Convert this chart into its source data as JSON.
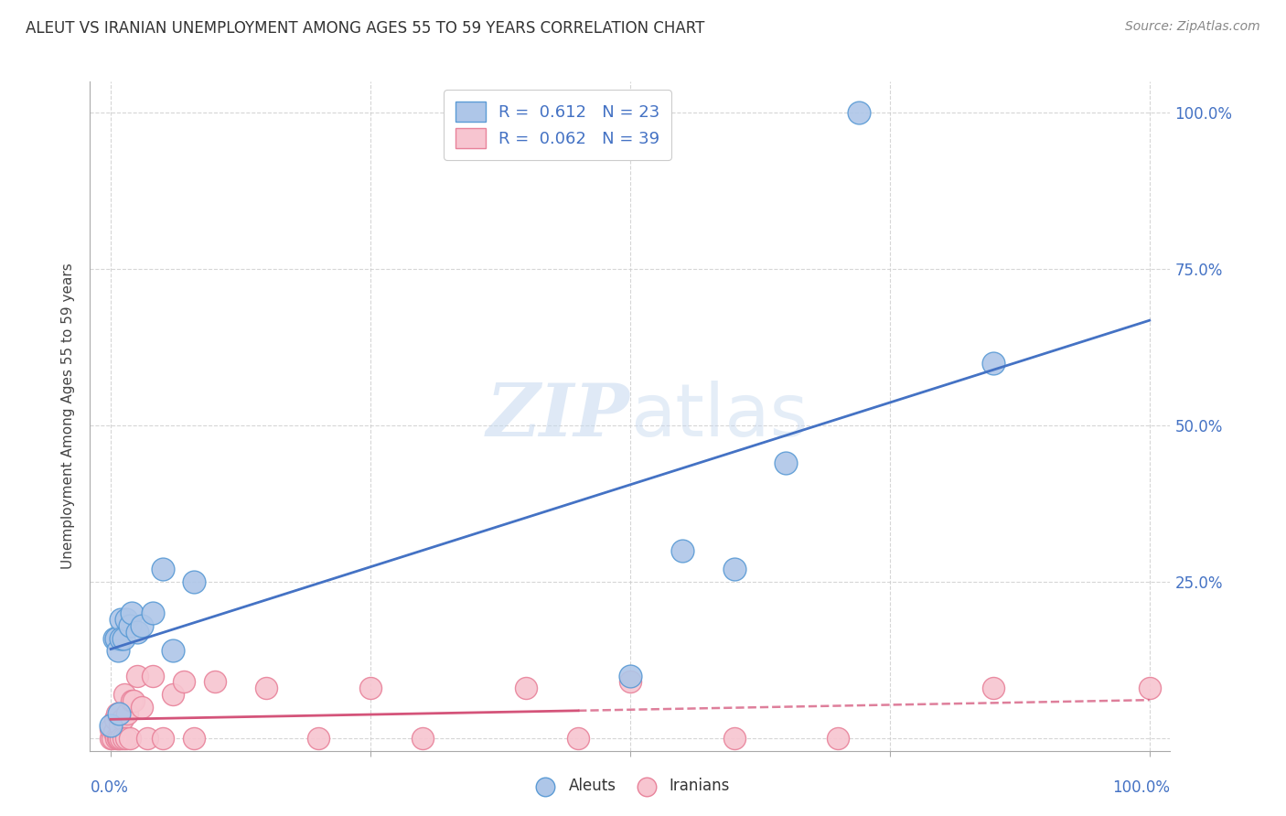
{
  "title": "ALEUT VS IRANIAN UNEMPLOYMENT AMONG AGES 55 TO 59 YEARS CORRELATION CHART",
  "source": "Source: ZipAtlas.com",
  "ylabel": "Unemployment Among Ages 55 to 59 years",
  "aleut_R": 0.612,
  "aleut_N": 23,
  "iranian_R": 0.062,
  "iranian_N": 39,
  "aleut_color": "#aec6e8",
  "aleut_edge_color": "#5b9bd5",
  "aleut_line_color": "#4472c4",
  "iranian_color": "#f7c5d0",
  "iranian_edge_color": "#e8829a",
  "iranian_line_color": "#d4547a",
  "aleut_points_x": [
    0.0,
    0.003,
    0.005,
    0.007,
    0.008,
    0.01,
    0.01,
    0.012,
    0.015,
    0.018,
    0.02,
    0.025,
    0.03,
    0.04,
    0.05,
    0.06,
    0.08,
    0.5,
    0.55,
    0.6,
    0.65,
    0.72,
    0.85
  ],
  "aleut_points_y": [
    0.02,
    0.16,
    0.16,
    0.14,
    0.04,
    0.19,
    0.16,
    0.16,
    0.19,
    0.18,
    0.2,
    0.17,
    0.18,
    0.2,
    0.27,
    0.14,
    0.25,
    0.1,
    0.3,
    0.27,
    0.44,
    1.0,
    0.6
  ],
  "iranian_points_x": [
    0.0,
    0.0,
    0.002,
    0.003,
    0.004,
    0.005,
    0.006,
    0.007,
    0.008,
    0.009,
    0.01,
    0.011,
    0.012,
    0.013,
    0.015,
    0.016,
    0.018,
    0.02,
    0.022,
    0.025,
    0.03,
    0.035,
    0.04,
    0.05,
    0.06,
    0.07,
    0.08,
    0.1,
    0.15,
    0.2,
    0.25,
    0.3,
    0.4,
    0.45,
    0.5,
    0.6,
    0.7,
    0.85,
    1.0
  ],
  "iranian_points_y": [
    0.0,
    0.015,
    0.0,
    0.01,
    0.03,
    0.0,
    0.04,
    0.0,
    0.0,
    0.02,
    0.0,
    0.03,
    0.0,
    0.07,
    0.0,
    0.04,
    0.0,
    0.06,
    0.06,
    0.1,
    0.05,
    0.0,
    0.1,
    0.0,
    0.07,
    0.09,
    0.0,
    0.09,
    0.08,
    0.0,
    0.08,
    0.0,
    0.08,
    0.0,
    0.09,
    0.0,
    0.0,
    0.08,
    0.08
  ],
  "xlim": [
    -0.02,
    1.02
  ],
  "ylim": [
    -0.02,
    1.05
  ],
  "background_color": "#ffffff",
  "grid_color": "#cccccc",
  "watermark_zip": "ZIP",
  "watermark_atlas": "atlas",
  "right_ytick_positions": [
    0.0,
    0.25,
    0.5,
    0.75,
    1.0
  ],
  "right_yticklabels": [
    "",
    "25.0%",
    "50.0%",
    "75.0%",
    "100.0%"
  ]
}
